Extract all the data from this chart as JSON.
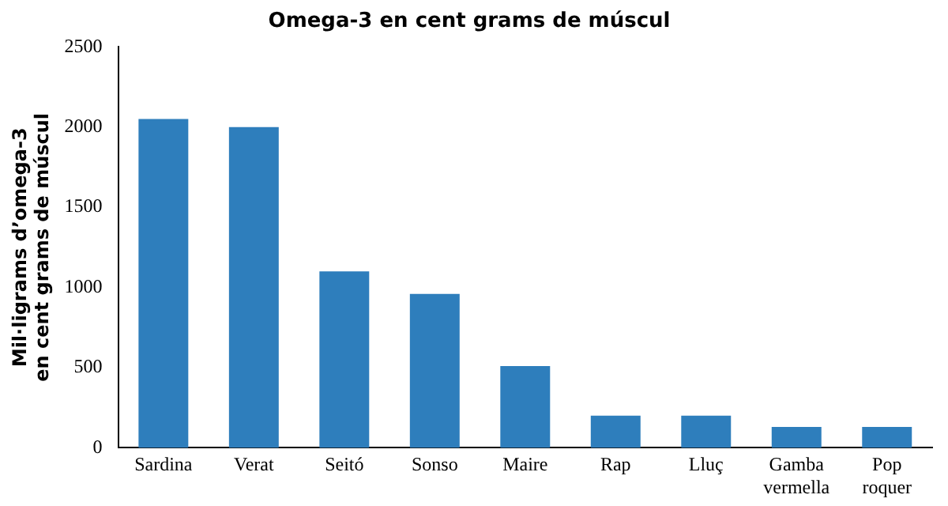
{
  "chart_data": {
    "type": "bar",
    "title": "Omega-3 en cent grams de múscul",
    "ylabel": "Mil·ligrams d’omega-3 en cent grams de múscul",
    "categories": [
      "Sardina",
      "Verat",
      "Seitó",
      "Sonso",
      "Maire",
      "Rap",
      "Lluç",
      "Gamba vermella",
      "Pop roquer"
    ],
    "values": [
      2050,
      2000,
      1100,
      960,
      510,
      200,
      200,
      130,
      130
    ],
    "color": "#2e7ebc",
    "ylim": [
      0,
      2500
    ],
    "yticks": [
      0,
      500,
      1000,
      1500,
      2000,
      2500
    ],
    "grid": false,
    "legend": false
  }
}
